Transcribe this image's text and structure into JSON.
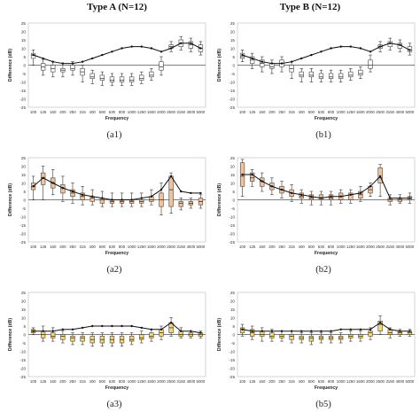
{
  "column_titles": [
    "Type A (N=12)",
    "Type B (N=12)"
  ],
  "chart_data": [
    {
      "type": "box",
      "caption": "(a1)",
      "box_color": "#ffffff",
      "xlabel": "Frequency",
      "ylabel": "Difference (dB)",
      "ylim": [
        -25,
        25
      ],
      "yticks": [
        -25,
        -20,
        -15,
        -10,
        -5,
        0,
        5,
        10,
        15,
        20,
        25
      ],
      "categories": [
        "100",
        "125",
        "160",
        "200",
        "250",
        "315",
        "400",
        "500",
        "630",
        "800",
        "1000",
        "1250",
        "1600",
        "2000",
        "2500",
        "3150",
        "4000",
        "5000"
      ],
      "series": [
        {
          "kind": "box",
          "q1": [
            4,
            -3,
            -4,
            -4,
            -3,
            -6,
            -8,
            -9,
            -10,
            -10,
            -10,
            -9,
            -7,
            -3,
            10,
            11,
            10,
            8
          ],
          "median": [
            6,
            -1,
            -2,
            -3,
            -2,
            -4,
            -7,
            -8,
            -9,
            -9,
            -9,
            -8,
            -6,
            -1,
            11,
            13,
            12,
            10
          ],
          "q3": [
            7,
            1,
            0,
            -2,
            0,
            -2,
            -5,
            -6,
            -7,
            -7,
            -7,
            -6,
            -4,
            2,
            12,
            15,
            14,
            12
          ],
          "whisker_low": [
            0,
            -6,
            -7,
            -7,
            -6,
            -10,
            -11,
            -12,
            -12,
            -12,
            -12,
            -11,
            -9,
            -6,
            8,
            9,
            8,
            6
          ],
          "whisker_high": [
            9,
            3,
            2,
            1,
            2,
            0,
            -3,
            -4,
            -5,
            -5,
            -5,
            -4,
            -2,
            5,
            14,
            17,
            16,
            14
          ]
        },
        {
          "kind": "line",
          "values": [
            6,
            4,
            2,
            1,
            1,
            2,
            4,
            6,
            8,
            10,
            11,
            11,
            10,
            8,
            10,
            13,
            13,
            10
          ]
        }
      ]
    },
    {
      "type": "box",
      "caption": "(b1)",
      "box_color": "#ffffff",
      "xlabel": "Frequency",
      "ylabel": "Difference (dB)",
      "ylim": [
        -25,
        25
      ],
      "yticks": [
        -25,
        -20,
        -15,
        -10,
        -5,
        0,
        5,
        10,
        15,
        20,
        25
      ],
      "categories": [
        "100",
        "125",
        "160",
        "200",
        "250",
        "315",
        "400",
        "500",
        "630",
        "800",
        "1000",
        "1250",
        "1600",
        "2000",
        "2500",
        "3150",
        "4000",
        "5000"
      ],
      "series": [
        {
          "kind": "box",
          "q1": [
            4,
            1,
            -1,
            -2,
            -1,
            -4,
            -7,
            -7,
            -8,
            -8,
            -8,
            -7,
            -6,
            -2,
            10,
            11,
            10,
            8
          ],
          "median": [
            5,
            3,
            1,
            -1,
            1,
            -2,
            -6,
            -6,
            -7,
            -7,
            -7,
            -6,
            -5,
            0,
            11,
            13,
            12,
            9
          ],
          "q3": [
            7,
            5,
            3,
            1,
            3,
            0,
            -4,
            -4,
            -5,
            -5,
            -5,
            -4,
            -3,
            3,
            12,
            14,
            13,
            11
          ],
          "whisker_low": [
            2,
            -2,
            -4,
            -5,
            -4,
            -8,
            -10,
            -10,
            -10,
            -10,
            -10,
            -9,
            -8,
            -4,
            8,
            9,
            8,
            6
          ],
          "whisker_high": [
            9,
            7,
            5,
            3,
            5,
            2,
            -2,
            -2,
            -3,
            -3,
            -3,
            -2,
            -1,
            6,
            14,
            16,
            15,
            13
          ]
        },
        {
          "kind": "line",
          "values": [
            6,
            4,
            2,
            1,
            1,
            2,
            4,
            6,
            8,
            10,
            11,
            11,
            10,
            8,
            11,
            13,
            12,
            9
          ]
        }
      ]
    },
    {
      "type": "box",
      "caption": "(a2)",
      "box_color": "#f2c29b",
      "xlabel": "Frequency",
      "ylabel": "Difference (dB)",
      "ylim": [
        -25,
        25
      ],
      "yticks": [
        -25,
        -20,
        -15,
        -10,
        -5,
        0,
        5,
        10,
        15,
        20,
        25
      ],
      "categories": [
        "100",
        "125",
        "160",
        "200",
        "250",
        "315",
        "400",
        "500",
        "630",
        "800",
        "1000",
        "1250",
        "1600",
        "2000",
        "2500",
        "3150",
        "4000",
        "5000"
      ],
      "series": [
        {
          "kind": "box",
          "q1": [
            6,
            9,
            7,
            4,
            2,
            0,
            -1,
            -2,
            -2,
            -2,
            -2,
            -2,
            -1,
            -4,
            -4,
            -4,
            -3,
            -3
          ],
          "median": [
            8,
            13,
            10,
            7,
            4,
            2,
            1,
            0,
            -1,
            -1,
            -1,
            -1,
            0,
            0,
            6,
            -2,
            -2,
            -1
          ],
          "q3": [
            10,
            16,
            13,
            9,
            6,
            4,
            2,
            1,
            0,
            0,
            0,
            0,
            2,
            4,
            14,
            -1,
            -1,
            1
          ],
          "whisker_low": [
            0,
            0,
            3,
            -1,
            -2,
            -3,
            -3,
            -4,
            -4,
            -4,
            -4,
            -4,
            -3,
            -9,
            -8,
            -6,
            -5,
            -5
          ],
          "whisker_high": [
            14,
            20,
            18,
            14,
            10,
            8,
            6,
            5,
            4,
            4,
            4,
            4,
            6,
            10,
            16,
            1,
            1,
            3
          ]
        },
        {
          "kind": "line",
          "values": [
            8,
            13,
            10,
            7,
            5,
            3,
            2,
            1,
            0,
            0,
            0,
            1,
            2,
            6,
            14,
            5,
            4,
            4
          ]
        }
      ]
    },
    {
      "type": "box",
      "caption": "(b2)",
      "box_color": "#f2c29b",
      "xlabel": "Frequency",
      "ylabel": "Difference (dB)",
      "ylim": [
        -25,
        25
      ],
      "yticks": [
        -25,
        -20,
        -15,
        -10,
        -5,
        0,
        5,
        10,
        15,
        20,
        25
      ],
      "categories": [
        "100",
        "125",
        "160",
        "200",
        "250",
        "315",
        "400",
        "500",
        "630",
        "800",
        "1000",
        "1250",
        "1600",
        "2000",
        "2500",
        "3150",
        "4000",
        "5000"
      ],
      "series": [
        {
          "kind": "box",
          "q1": [
            8,
            11,
            8,
            6,
            4,
            2,
            1,
            0,
            0,
            0,
            0,
            0,
            1,
            4,
            10,
            -1,
            -1,
            0
          ],
          "median": [
            14,
            13,
            11,
            8,
            6,
            4,
            2,
            1,
            1,
            1,
            2,
            3,
            3,
            6,
            13,
            0,
            0,
            1
          ],
          "q3": [
            22,
            16,
            13,
            10,
            8,
            6,
            4,
            3,
            3,
            3,
            4,
            4,
            5,
            8,
            19,
            1,
            1,
            2
          ],
          "whisker_low": [
            2,
            8,
            5,
            3,
            1,
            -1,
            -2,
            -3,
            -3,
            -3,
            -2,
            -2,
            -1,
            2,
            2,
            -3,
            -2,
            -2
          ],
          "whisker_high": [
            24,
            18,
            16,
            13,
            11,
            9,
            6,
            5,
            5,
            5,
            6,
            6,
            8,
            10,
            21,
            3,
            3,
            4
          ]
        },
        {
          "kind": "line",
          "values": [
            15,
            15,
            11,
            8,
            6,
            4,
            3,
            2,
            1,
            2,
            2,
            3,
            4,
            8,
            14,
            1,
            1,
            1
          ]
        }
      ]
    },
    {
      "type": "box",
      "caption": "(a3)",
      "box_color": "#f3d77a",
      "xlabel": "Frequency",
      "ylabel": "Difference (dB)",
      "ylim": [
        -25,
        25
      ],
      "yticks": [
        -25,
        -20,
        -15,
        -10,
        -5,
        0,
        5,
        10,
        15,
        20,
        25
      ],
      "categories": [
        "100",
        "125",
        "160",
        "200",
        "250",
        "315",
        "400",
        "500",
        "630",
        "800",
        "1000",
        "1250",
        "1600",
        "2000",
        "2500",
        "3150",
        "4000",
        "5000"
      ],
      "series": [
        {
          "kind": "box",
          "q1": [
            1,
            -2,
            -2,
            -3,
            -4,
            -4,
            -5,
            -5,
            -5,
            -5,
            -4,
            -3,
            -2,
            -1,
            1,
            -1,
            -1,
            -1
          ],
          "median": [
            2,
            0,
            -1,
            -1,
            -2,
            -2,
            -3,
            -3,
            -3,
            -3,
            -3,
            -2,
            -1,
            1,
            4,
            0,
            0,
            0
          ],
          "q3": [
            3,
            2,
            1,
            0,
            -1,
            -1,
            -1,
            -1,
            -1,
            -1,
            -1,
            0,
            1,
            3,
            7,
            2,
            1,
            1
          ],
          "whisker_low": [
            0,
            -4,
            -4,
            -5,
            -6,
            -6,
            -7,
            -7,
            -7,
            -7,
            -6,
            -5,
            -4,
            -3,
            -1,
            -2,
            -2,
            -2
          ],
          "whisker_high": [
            4,
            5,
            4,
            2,
            1,
            1,
            1,
            1,
            1,
            1,
            1,
            2,
            3,
            5,
            10,
            4,
            2,
            2
          ]
        },
        {
          "kind": "line",
          "values": [
            2,
            2,
            2,
            3,
            3,
            4,
            5,
            5,
            5,
            5,
            5,
            4,
            3,
            3,
            7,
            2,
            2,
            1
          ]
        }
      ]
    },
    {
      "type": "box",
      "caption": "(b5)",
      "box_color": "#f3d77a",
      "xlabel": "Frequency",
      "ylabel": "Difference (dB)",
      "ylim": [
        -25,
        25
      ],
      "yticks": [
        -25,
        -20,
        -15,
        -10,
        -5,
        0,
        5,
        10,
        15,
        20,
        25
      ],
      "categories": [
        "100",
        "125",
        "160",
        "200",
        "250",
        "315",
        "400",
        "500",
        "630",
        "800",
        "1000",
        "1250",
        "1600",
        "2000",
        "2500",
        "3150",
        "4000",
        "5000"
      ],
      "series": [
        {
          "kind": "box",
          "q1": [
            1,
            -1,
            -1,
            -2,
            -2,
            -3,
            -3,
            -4,
            -3,
            -3,
            -3,
            -2,
            -2,
            -1,
            2,
            0,
            0,
            0
          ],
          "median": [
            3,
            1,
            0,
            -1,
            -1,
            -1,
            -2,
            -2,
            -2,
            -2,
            -2,
            -1,
            -1,
            1,
            6,
            1,
            1,
            1
          ],
          "q3": [
            4,
            3,
            2,
            1,
            0,
            0,
            -1,
            -1,
            -1,
            -1,
            -1,
            0,
            0,
            2,
            8,
            3,
            2,
            2
          ],
          "whisker_low": [
            -1,
            -3,
            -4,
            -4,
            -4,
            -5,
            -5,
            -6,
            -5,
            -5,
            -5,
            -4,
            -4,
            -3,
            0,
            -2,
            -1,
            -1
          ],
          "whisker_high": [
            6,
            5,
            4,
            3,
            2,
            2,
            1,
            1,
            1,
            1,
            1,
            2,
            2,
            4,
            11,
            4,
            3,
            3
          ]
        },
        {
          "kind": "line",
          "values": [
            3,
            2,
            2,
            2,
            2,
            2,
            2,
            2,
            2,
            2,
            3,
            3,
            3,
            3,
            7,
            3,
            2,
            2
          ]
        }
      ]
    }
  ]
}
